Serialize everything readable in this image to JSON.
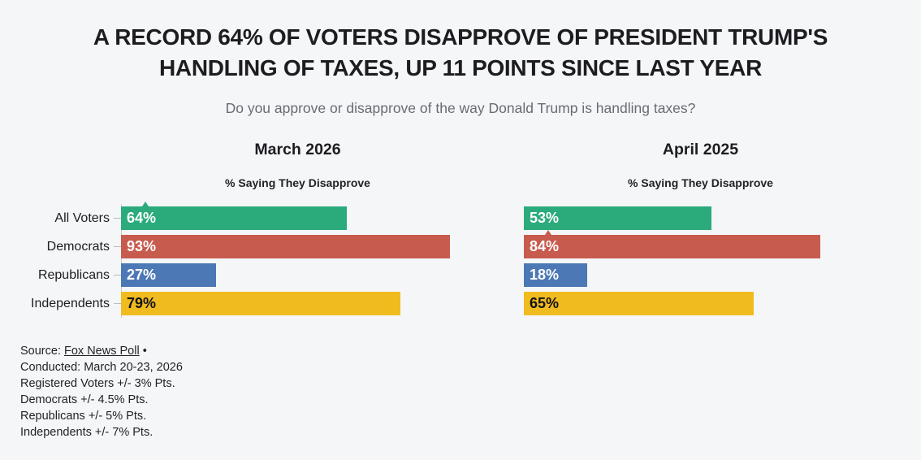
{
  "page": {
    "background": "#f5f6f8"
  },
  "header": {
    "title_line1": "A RECORD 64% OF VOTERS DISAPPROVE OF PRESIDENT TRUMP'S",
    "title_line2": "HANDLING OF TAXES, UP 11 POINTS SINCE LAST YEAR",
    "subtitle": "Do you approve or disapprove of the way Donald Trump is handling taxes?"
  },
  "chart_data": [
    {
      "type": "bar",
      "orientation": "horizontal",
      "title": "March 2026",
      "subtitle": "% Saying They Disapprove",
      "categories": [
        "All Voters",
        "Democrats",
        "Republicans",
        "Independents"
      ],
      "values": [
        64,
        93,
        27,
        79
      ],
      "value_labels": [
        "64%",
        "93%",
        "27%",
        "79%"
      ],
      "colors": [
        "#2bab7c",
        "#c75b4e",
        "#4c78b5",
        "#f0bb1f"
      ],
      "label_colors": [
        "#ffffff",
        "#ffffff",
        "#ffffff",
        "#131313"
      ],
      "xlim": [
        0,
        100
      ],
      "grid": false,
      "show_category_labels": true,
      "axis_line": true,
      "annotation_caret": {
        "row": 0,
        "color": "#2bab7c"
      }
    },
    {
      "type": "bar",
      "orientation": "horizontal",
      "title": "April 2025",
      "subtitle": "% Saying They Disapprove",
      "categories": [
        "All Voters",
        "Democrats",
        "Republicans",
        "Independents"
      ],
      "values": [
        53,
        84,
        18,
        65
      ],
      "value_labels": [
        "53%",
        "84%",
        "18%",
        "65%"
      ],
      "colors": [
        "#2bab7c",
        "#c75b4e",
        "#4c78b5",
        "#f0bb1f"
      ],
      "label_colors": [
        "#ffffff",
        "#ffffff",
        "#ffffff",
        "#131313"
      ],
      "xlim": [
        0,
        100
      ],
      "grid": false,
      "show_category_labels": false,
      "axis_line": false,
      "annotation_caret": {
        "row": 1,
        "color": "#c75b4e"
      }
    }
  ],
  "footer": {
    "source_prefix": "Source: ",
    "source_link": "Fox News Poll",
    "source_suffix": " •",
    "lines": [
      "Conducted: March 20-23, 2026",
      "Registered Voters +/- 3% Pts.",
      "Democrats +/- 4.5% Pts.",
      "Republicans +/- 5% Pts.",
      "Independents +/- 7% Pts."
    ]
  }
}
